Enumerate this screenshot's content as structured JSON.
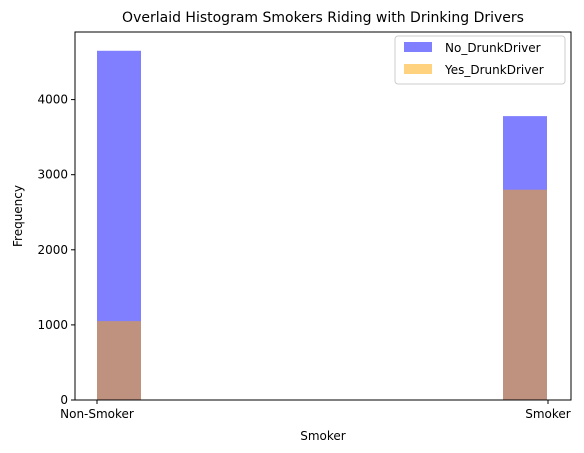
{
  "chart_data": {
    "type": "bar",
    "title": "Overlaid Histogram Smokers Riding with Drinking Drivers",
    "xlabel": "Smoker",
    "ylabel": "Frequency",
    "categories": [
      "Non-Smoker",
      "Smoker"
    ],
    "ylim": [
      0,
      4900
    ],
    "yticks": [
      0,
      1000,
      2000,
      3000,
      4000
    ],
    "series": [
      {
        "name": "No_DrunkDriver",
        "values": [
          4650,
          3780
        ],
        "color": "#0000ff",
        "opacity": 0.5
      },
      {
        "name": "Yes_DrunkDriver",
        "values": [
          1050,
          2800
        ],
        "color": "#ffa500",
        "opacity": 0.5
      }
    ],
    "grid": false,
    "legend_position": "top-right"
  }
}
